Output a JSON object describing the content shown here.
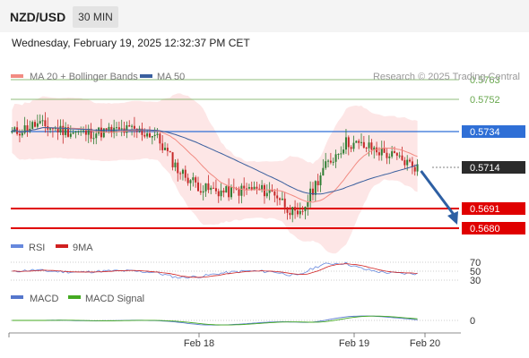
{
  "header": {
    "symbol": "NZD/USD",
    "timeframe": "30 MIN",
    "datetime": "Wednesday, February 19, 2025 12:32:37 PM CET"
  },
  "legend": {
    "ma20": "MA 20 + Bollinger Bands",
    "ma50": "MA 50",
    "credit": "Research © 2025 Trading Central",
    "rsi": "RSI",
    "rsi_ma": "9MA",
    "macd": "MACD",
    "macd_signal": "MACD Signal"
  },
  "colors": {
    "up": "#2e7d32",
    "down": "#c62828",
    "ma20": "#f28b82",
    "bands_fill": "#fde2e2",
    "ma50": "#3a5f9e",
    "resistance_green": "#6aa84f",
    "pivot_blue": "#2f6fd6",
    "support_red": "#e00000",
    "last_price_bg": "#2b2b2b",
    "arrow": "#2d5fa3",
    "rsi_line": "#6688dd",
    "rsi_ma_line": "#d02020",
    "macd_line": "#5577cc",
    "macd_signal_line": "#44aa22"
  },
  "chart_data": [
    {
      "type": "candlestick",
      "title": "NZD/USD 30 MIN",
      "x_ticks": [
        "Feb 18",
        "Feb 19",
        "Feb 20"
      ],
      "ylim": [
        0.5675,
        0.577
      ],
      "levels": [
        {
          "value": 0.5763,
          "label": "0.5763",
          "role": "resistance"
        },
        {
          "value": 0.5752,
          "label": "0.5752",
          "role": "resistance"
        },
        {
          "value": 0.5734,
          "label": "0.5734",
          "role": "pivot"
        },
        {
          "value": 0.5691,
          "label": "0.5691",
          "role": "support"
        },
        {
          "value": 0.568,
          "label": "0.5680",
          "role": "support"
        }
      ],
      "last_price": {
        "value": 0.5714,
        "label": "0.5714"
      },
      "forecast_arrow": {
        "from": 0.5712,
        "to": 0.5683
      },
      "key_closes": [
        0.5733,
        0.5738,
        0.5735,
        0.5733,
        0.5734,
        0.5735,
        0.5732,
        0.5712,
        0.5702,
        0.57,
        0.5702,
        0.57,
        0.5685,
        0.5712,
        0.5728,
        0.5725,
        0.572,
        0.5714
      ]
    },
    {
      "type": "line",
      "title": "RSI",
      "series": [
        {
          "name": "RSI"
        },
        {
          "name": "9MA"
        }
      ],
      "y_ticks": [
        70,
        50,
        30
      ]
    },
    {
      "type": "line",
      "title": "MACD",
      "series": [
        {
          "name": "MACD"
        },
        {
          "name": "MACD Signal"
        }
      ],
      "y_ticks": [
        0
      ]
    }
  ]
}
